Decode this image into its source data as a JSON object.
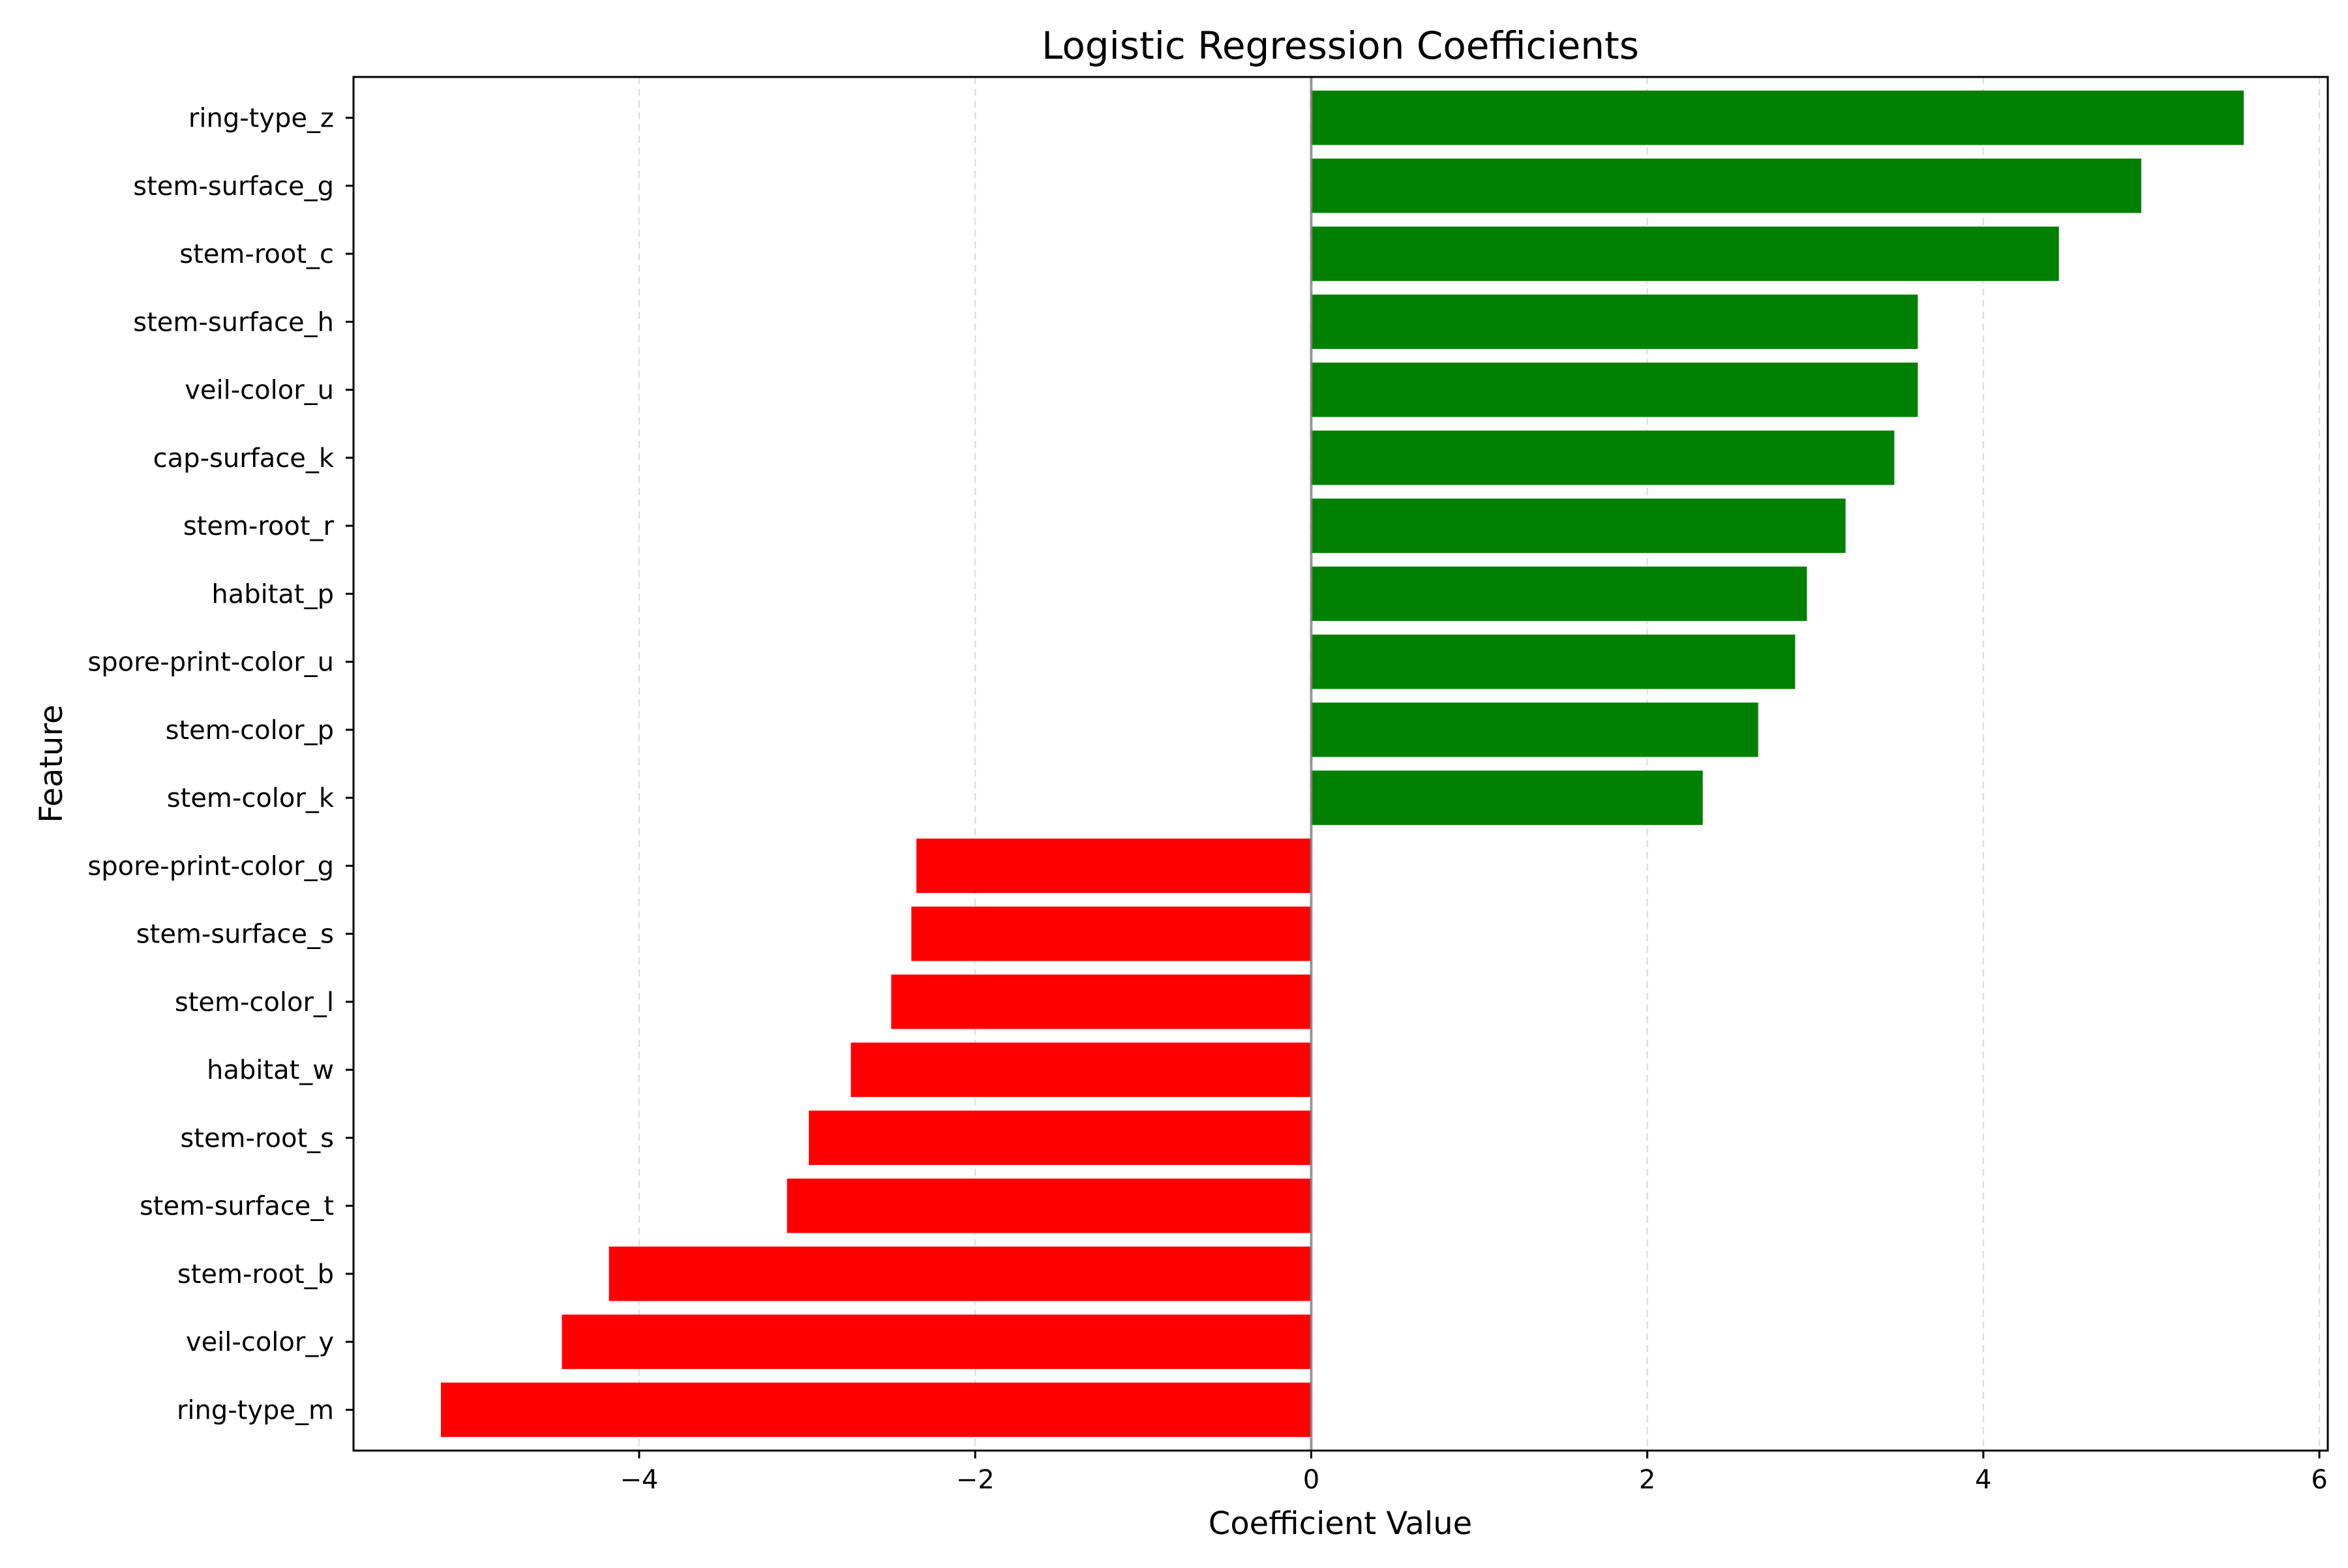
{
  "chart_data": {
    "type": "bar",
    "orientation": "horizontal",
    "title": "Logistic Regression Coefficients",
    "xlabel": "Coefficient Value",
    "ylabel": "Feature",
    "xlim": [
      -5.7,
      6.05
    ],
    "xticks": [
      -4,
      -2,
      0,
      2,
      4,
      6
    ],
    "xtick_labels": [
      "−4",
      "−2",
      "0",
      "2",
      "4",
      "6"
    ],
    "grid": "x, dashed",
    "zero_line": true,
    "categories": [
      "ring-type_z",
      "stem-surface_g",
      "stem-root_c",
      "stem-surface_h",
      "veil-color_u",
      "cap-surface_k",
      "stem-root_r",
      "habitat_p",
      "spore-print-color_u",
      "stem-color_p",
      "stem-color_k",
      "spore-print-color_g",
      "stem-surface_s",
      "stem-color_l",
      "habitat_w",
      "stem-root_s",
      "stem-surface_t",
      "stem-root_b",
      "veil-color_y",
      "ring-type_m"
    ],
    "values": [
      5.55,
      4.94,
      4.45,
      3.61,
      3.61,
      3.47,
      3.18,
      2.95,
      2.88,
      2.66,
      2.33,
      -2.35,
      -2.38,
      -2.5,
      -2.74,
      -2.99,
      -3.12,
      -4.18,
      -4.46,
      -5.18
    ],
    "colors": {
      "positive": "#008000",
      "negative": "#ff0000",
      "zero_line": "#808080",
      "grid": "#e0e0e0"
    }
  }
}
